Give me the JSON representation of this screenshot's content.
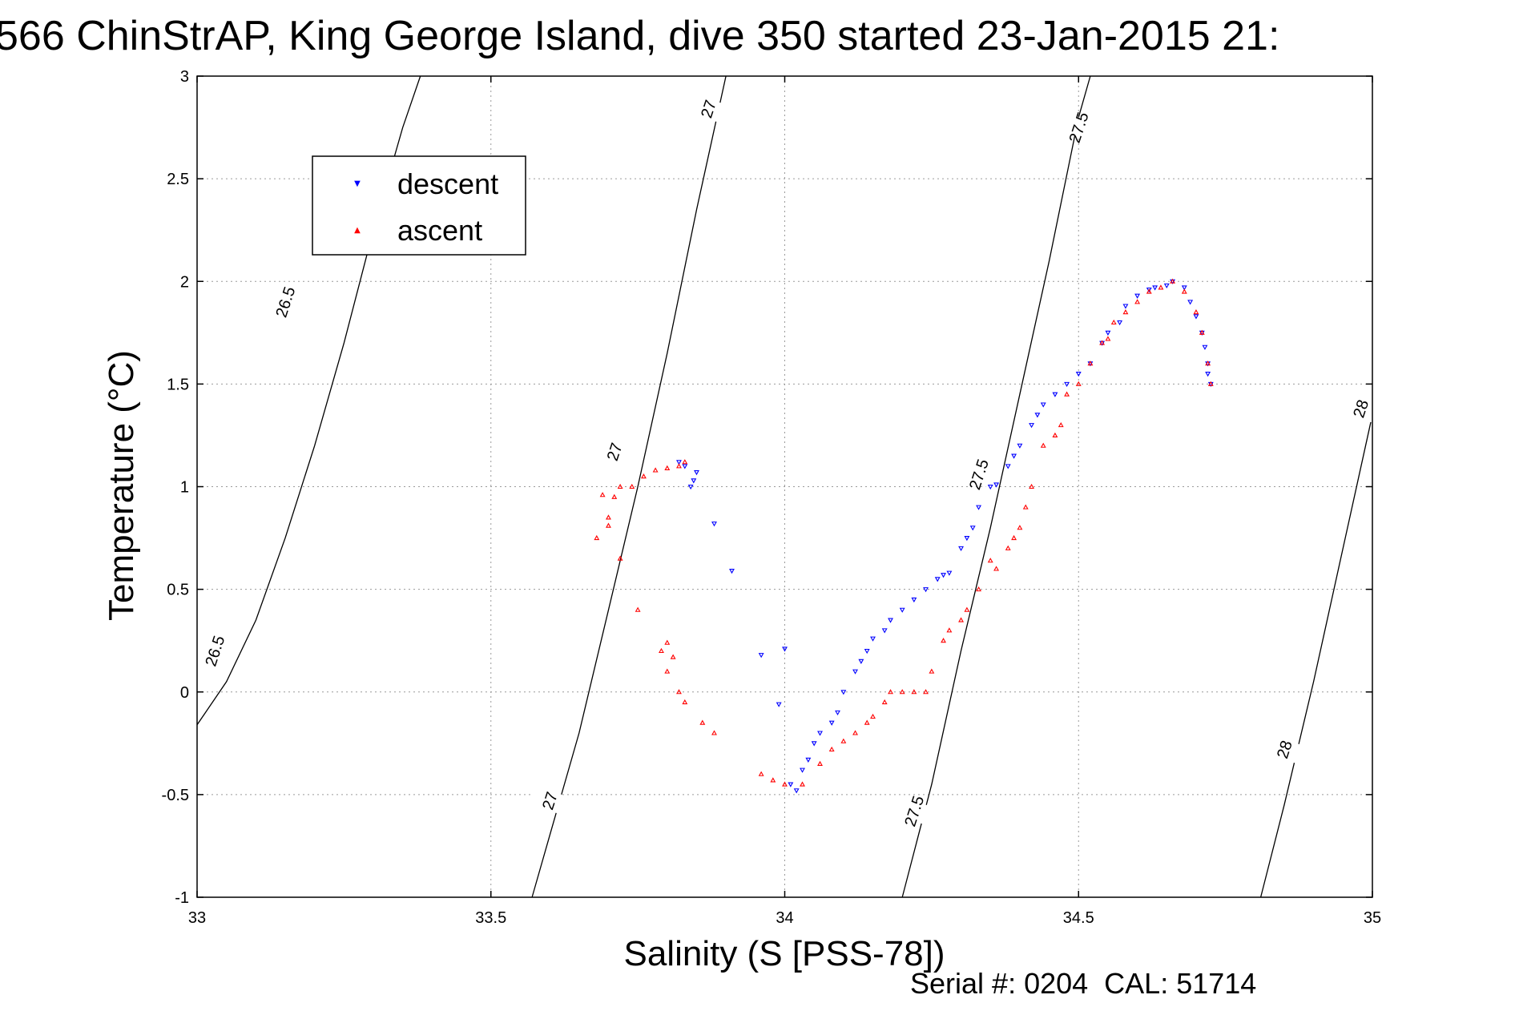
{
  "chart_data": {
    "type": "scatter",
    "title": "566 ChinStrAP, King George Island, dive 350 started 23-Jan-2015 21:",
    "xlabel": "Salinity (S [PSS-78])",
    "ylabel": "Temperature (°C)",
    "xlim": [
      33,
      35
    ],
    "ylim": [
      -1,
      3
    ],
    "xticks": [
      33,
      33.5,
      34,
      34.5,
      35
    ],
    "xtick_labels": [
      "33",
      "33.5",
      "34",
      "34.5",
      "35"
    ],
    "yticks": [
      -1,
      -0.5,
      0,
      0.5,
      1,
      1.5,
      2,
      2.5,
      3
    ],
    "ytick_labels": [
      "-1",
      "-0.5",
      "0",
      "0.5",
      "1",
      "1.5",
      "2",
      "2.5",
      "3"
    ],
    "grid": true,
    "legend_position": "top-left",
    "footer": "Serial #: 0204  CAL: 51714",
    "contours": [
      {
        "label": "26.5",
        "points": [
          [
            33.0,
            -0.16
          ],
          [
            33.05,
            0.05
          ],
          [
            33.1,
            0.35
          ],
          [
            33.15,
            0.75
          ],
          [
            33.2,
            1.2
          ],
          [
            33.25,
            1.7
          ],
          [
            33.3,
            2.25
          ],
          [
            33.35,
            2.75
          ],
          [
            33.38,
            3.0
          ]
        ],
        "label_positions": [
          [
            33.03,
            0.2
          ],
          [
            33.15,
            1.9
          ]
        ]
      },
      {
        "label": "27",
        "points": [
          [
            33.57,
            -1.0
          ],
          [
            33.6,
            -0.7
          ],
          [
            33.65,
            -0.2
          ],
          [
            33.7,
            0.4
          ],
          [
            33.75,
            1.0
          ],
          [
            33.8,
            1.65
          ],
          [
            33.85,
            2.35
          ],
          [
            33.9,
            3.0
          ]
        ],
        "label_positions": [
          [
            33.6,
            -0.53
          ],
          [
            33.71,
            1.17
          ],
          [
            33.87,
            2.84
          ]
        ]
      },
      {
        "label": "27.5",
        "points": [
          [
            34.2,
            -1.0
          ],
          [
            34.25,
            -0.45
          ],
          [
            34.3,
            0.2
          ],
          [
            34.35,
            0.8
          ],
          [
            34.4,
            1.45
          ],
          [
            34.45,
            2.1
          ],
          [
            34.5,
            2.8
          ],
          [
            34.52,
            3.0
          ]
        ],
        "label_positions": [
          [
            34.22,
            -0.58
          ],
          [
            34.33,
            1.06
          ],
          [
            34.5,
            2.75
          ]
        ]
      },
      {
        "label": "28",
        "points": [
          [
            34.81,
            -1.0
          ],
          [
            34.85,
            -0.55
          ],
          [
            34.9,
            0.05
          ],
          [
            34.95,
            0.7
          ],
          [
            35.0,
            1.35
          ]
        ],
        "label_positions": [
          [
            34.85,
            -0.28
          ],
          [
            34.98,
            1.38
          ]
        ]
      }
    ],
    "series": [
      {
        "name": "descent",
        "color": "#0000ff",
        "marker": "triangle-down",
        "x": [
          33.84,
          33.845,
          33.85,
          33.83,
          33.82,
          33.88,
          33.91,
          33.96,
          34.0,
          33.99,
          34.01,
          34.02,
          34.03,
          34.04,
          34.05,
          34.06,
          34.08,
          34.09,
          34.1,
          34.12,
          34.13,
          34.14,
          34.15,
          34.17,
          34.18,
          34.2,
          34.22,
          34.24,
          34.26,
          34.27,
          34.28,
          34.3,
          34.31,
          34.32,
          34.33,
          34.35,
          34.36,
          34.38,
          34.39,
          34.4,
          34.42,
          34.43,
          34.44,
          34.46,
          34.48,
          34.5,
          34.52,
          34.54,
          34.55,
          34.57,
          34.58,
          34.6,
          34.62,
          34.63,
          34.65,
          34.66,
          34.68,
          34.69,
          34.7,
          34.71,
          34.715,
          34.72,
          34.72,
          34.725
        ],
        "y": [
          1.0,
          1.03,
          1.07,
          1.1,
          1.12,
          0.82,
          0.59,
          0.18,
          0.21,
          -0.06,
          -0.45,
          -0.48,
          -0.38,
          -0.33,
          -0.25,
          -0.2,
          -0.15,
          -0.1,
          0.0,
          0.1,
          0.15,
          0.2,
          0.26,
          0.3,
          0.35,
          0.4,
          0.45,
          0.5,
          0.55,
          0.57,
          0.58,
          0.7,
          0.75,
          0.8,
          0.9,
          1.0,
          1.01,
          1.1,
          1.15,
          1.2,
          1.3,
          1.35,
          1.4,
          1.45,
          1.5,
          1.55,
          1.6,
          1.7,
          1.75,
          1.8,
          1.88,
          1.93,
          1.96,
          1.97,
          1.98,
          2.0,
          1.97,
          1.9,
          1.83,
          1.75,
          1.68,
          1.6,
          1.55,
          1.5
        ]
      },
      {
        "name": "ascent",
        "color": "#ff0000",
        "marker": "triangle-up",
        "x": [
          33.83,
          33.82,
          33.8,
          33.78,
          33.76,
          33.74,
          33.72,
          33.71,
          33.69,
          33.68,
          33.7,
          33.7,
          33.72,
          33.75,
          33.79,
          33.8,
          33.81,
          33.8,
          33.82,
          33.83,
          33.86,
          33.88,
          33.96,
          33.98,
          34.0,
          34.03,
          34.06,
          34.08,
          34.1,
          34.12,
          34.14,
          34.15,
          34.17,
          34.18,
          34.2,
          34.22,
          34.24,
          34.25,
          34.27,
          34.28,
          34.3,
          34.31,
          34.33,
          34.35,
          34.36,
          34.38,
          34.39,
          34.4,
          34.41,
          34.42,
          34.44,
          34.46,
          34.47,
          34.48,
          34.5,
          34.52,
          34.54,
          34.55,
          34.56,
          34.58,
          34.6,
          34.62,
          34.64,
          34.66,
          34.68,
          34.7,
          34.71,
          34.72,
          34.725
        ],
        "y": [
          1.12,
          1.1,
          1.09,
          1.08,
          1.05,
          1.0,
          1.0,
          0.95,
          0.96,
          0.75,
          0.81,
          0.85,
          0.65,
          0.4,
          0.2,
          0.24,
          0.17,
          0.1,
          0.0,
          -0.05,
          -0.15,
          -0.2,
          -0.4,
          -0.43,
          -0.45,
          -0.45,
          -0.35,
          -0.28,
          -0.24,
          -0.2,
          -0.15,
          -0.12,
          -0.05,
          0.0,
          0.0,
          0.0,
          0.0,
          0.1,
          0.25,
          0.3,
          0.35,
          0.4,
          0.5,
          0.64,
          0.6,
          0.7,
          0.75,
          0.8,
          0.9,
          1.0,
          1.2,
          1.25,
          1.3,
          1.45,
          1.5,
          1.6,
          1.7,
          1.72,
          1.8,
          1.85,
          1.9,
          1.95,
          1.97,
          2.0,
          1.95,
          1.85,
          1.75,
          1.6,
          1.5
        ]
      }
    ]
  }
}
